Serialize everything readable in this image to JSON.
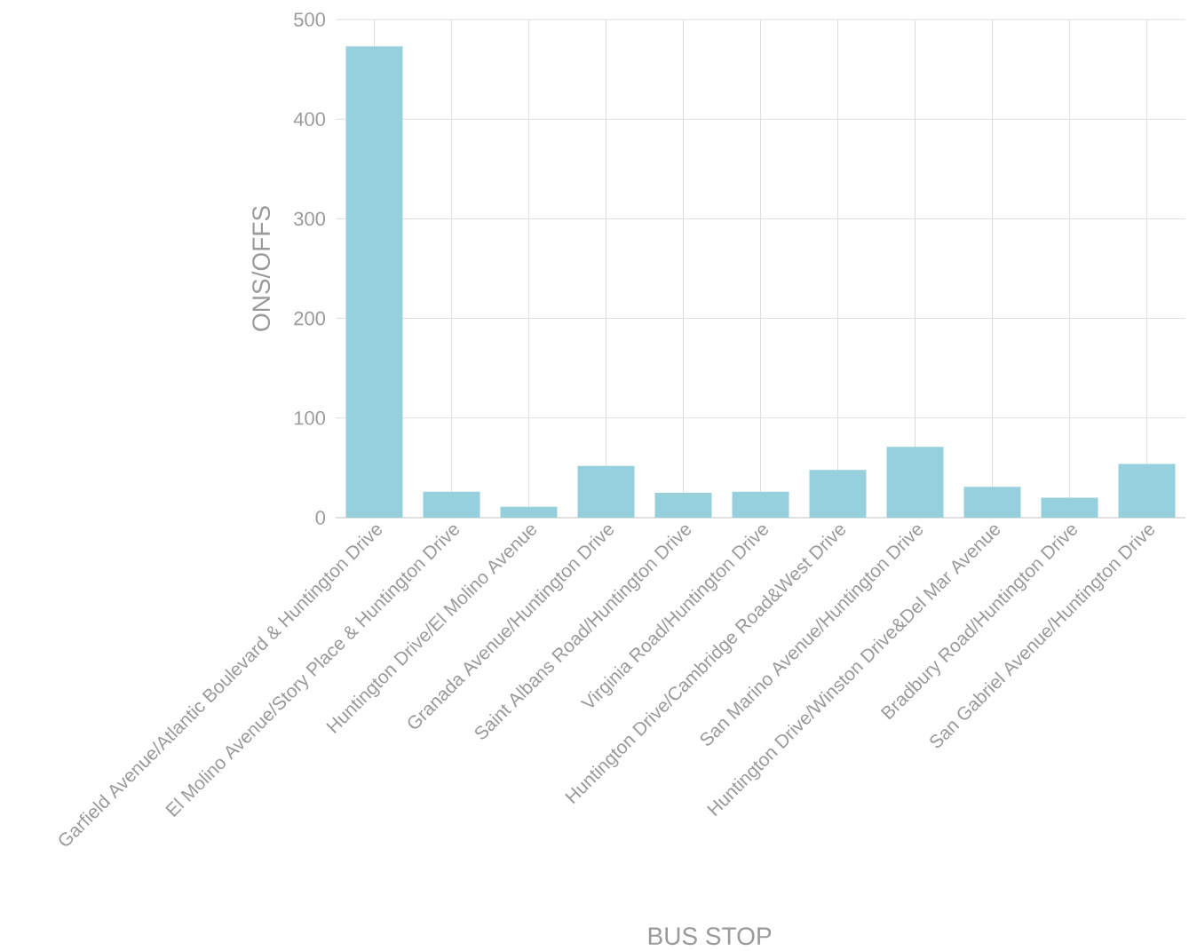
{
  "chart_data": {
    "type": "bar",
    "xlabel": "BUS STOP",
    "ylabel": "ONS/OFFS",
    "categories": [
      "Garfield Avenue/Atlantic Boulevard & Huntington Drive",
      "El Molino Avenue/Story Place & Huntington Drive",
      "Huntington Drive/El Molino Avenue",
      "Granada Avenue/Huntington Drive",
      "Saint Albans Road/Huntington Drive",
      "Virginia Road/Huntington Drive",
      "Huntington Drive/Cambridge Road&West Drive",
      "San Marino Avenue/Huntington Drive",
      "Huntington Drive/Winston Drive&Del Mar Avenue",
      "Bradbury Road/Huntington Drive",
      "San Gabriel Avenue/Huntington Drive"
    ],
    "values": [
      473,
      26,
      11,
      52,
      25,
      26,
      48,
      71,
      31,
      20,
      54
    ],
    "color": "#96d0dc",
    "ylim": [
      0,
      500
    ],
    "yticks": [
      0,
      100,
      200,
      300,
      400,
      500
    ],
    "grid": true
  }
}
